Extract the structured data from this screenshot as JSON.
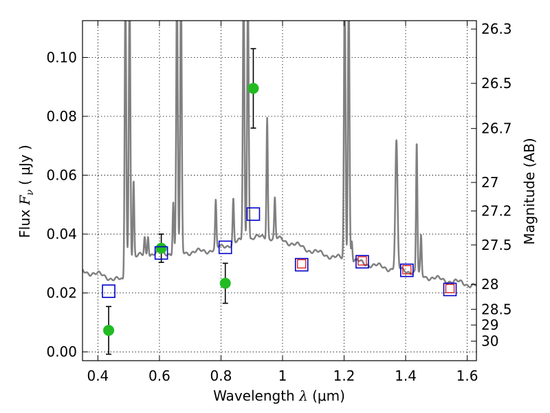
{
  "chart_data": {
    "type": "scatter",
    "title": "",
    "xlabel": {
      "prefix": "Wavelength ",
      "symbol": "λ",
      "unit": " (μm)"
    },
    "ylabel": {
      "prefix": "Flux ",
      "symbol": "F",
      "subscript": "ν",
      "unit": " ( μJy )"
    },
    "y2label": "Magnitude (AB)",
    "xlim": [
      0.35,
      1.63
    ],
    "ylim": [
      -0.003,
      0.1125
    ],
    "grid": true,
    "x_ticks": [
      "0.4",
      "0.6",
      "0.8",
      "1",
      "1.2",
      "1.4",
      "1.6"
    ],
    "x_tick_values": [
      0.4,
      0.6,
      0.8,
      1.0,
      1.2,
      1.4,
      1.6
    ],
    "y_ticks": [
      "0.00",
      "0.02",
      "0.04",
      "0.06",
      "0.08",
      "0.10"
    ],
    "y_tick_values": [
      0.0,
      0.02,
      0.04,
      0.06,
      0.08,
      0.1
    ],
    "y2_ticks": [
      "26.3",
      "26.5",
      "26.7",
      "27",
      "27.2",
      "27.5",
      "28",
      "28.5",
      "29",
      "30"
    ],
    "y2_tick_values": [
      26.3,
      26.5,
      26.7,
      27.0,
      27.2,
      27.5,
      28.0,
      28.5,
      29.0,
      30.0
    ],
    "colors": {
      "observed": "#22bb22",
      "model_blue": "#0000cc",
      "model_red": "#dd0000",
      "spectrum": "#808080",
      "errorbar": "#000000"
    },
    "series": [
      {
        "kind": "observed",
        "points": [
          {
            "x": 0.435,
            "y": 0.0073,
            "err": 0.0081
          },
          {
            "x": 0.606,
            "y": 0.0352,
            "err": 0.0048
          },
          {
            "x": 0.814,
            "y": 0.0233,
            "err": 0.0068
          },
          {
            "x": 0.905,
            "y": 0.0895,
            "err": 0.0135
          }
        ]
      },
      {
        "kind": "model_blue",
        "points": [
          {
            "x": 0.435,
            "y": 0.0206
          },
          {
            "x": 0.606,
            "y": 0.0336
          },
          {
            "x": 0.814,
            "y": 0.0355
          },
          {
            "x": 0.905,
            "y": 0.0468
          },
          {
            "x": 1.062,
            "y": 0.0296
          },
          {
            "x": 1.259,
            "y": 0.0306
          },
          {
            "x": 1.404,
            "y": 0.0277
          },
          {
            "x": 1.544,
            "y": 0.0212
          }
        ]
      },
      {
        "kind": "model_red",
        "points": [
          {
            "x": 1.062,
            "y": 0.0299
          },
          {
            "x": 1.259,
            "y": 0.0309
          },
          {
            "x": 1.404,
            "y": 0.0279
          },
          {
            "x": 1.544,
            "y": 0.0215
          }
        ]
      }
    ],
    "spectrum": {
      "continuum": [
        [
          0.35,
          0.0275
        ],
        [
          0.4,
          0.0263
        ],
        [
          0.45,
          0.0249
        ],
        [
          0.48,
          0.0241
        ],
        [
          0.49,
          0.0225
        ],
        [
          0.495,
          0.031
        ],
        [
          0.52,
          0.0321
        ],
        [
          0.55,
          0.033
        ],
        [
          0.6,
          0.0335
        ],
        [
          0.65,
          0.0336
        ],
        [
          0.7,
          0.0339
        ],
        [
          0.75,
          0.0342
        ],
        [
          0.8,
          0.0355
        ],
        [
          0.85,
          0.0372
        ],
        [
          0.9,
          0.0387
        ],
        [
          0.95,
          0.039
        ],
        [
          1.0,
          0.038
        ],
        [
          1.05,
          0.0361
        ],
        [
          1.1,
          0.0341
        ],
        [
          1.15,
          0.0327
        ],
        [
          1.2,
          0.0315
        ],
        [
          1.25,
          0.0305
        ],
        [
          1.3,
          0.0293
        ],
        [
          1.35,
          0.0283
        ],
        [
          1.4,
          0.0278
        ],
        [
          1.45,
          0.026
        ],
        [
          1.5,
          0.0248
        ],
        [
          1.55,
          0.024
        ],
        [
          1.63,
          0.0225
        ]
      ],
      "lines": [
        {
          "x": 0.4895,
          "peak": 0.125,
          "w": 0.0035
        },
        {
          "x": 0.503,
          "peak": 0.125,
          "w": 0.0035
        },
        {
          "x": 0.516,
          "peak": 0.058,
          "w": 0.003
        },
        {
          "x": 0.552,
          "peak": 0.039,
          "w": 0.003
        },
        {
          "x": 0.563,
          "peak": 0.04,
          "w": 0.003
        },
        {
          "x": 0.645,
          "peak": 0.051,
          "w": 0.003
        },
        {
          "x": 0.657,
          "peak": 0.125,
          "w": 0.0035
        },
        {
          "x": 0.67,
          "peak": 0.125,
          "w": 0.0035
        },
        {
          "x": 0.783,
          "peak": 0.051,
          "w": 0.003
        },
        {
          "x": 0.84,
          "peak": 0.052,
          "w": 0.003
        },
        {
          "x": 0.8735,
          "peak": 0.125,
          "w": 0.0035
        },
        {
          "x": 0.8875,
          "peak": 0.125,
          "w": 0.0035
        },
        {
          "x": 0.95,
          "peak": 0.08,
          "w": 0.003
        },
        {
          "x": 0.975,
          "peak": 0.052,
          "w": 0.003
        },
        {
          "x": 1.202,
          "peak": 0.125,
          "w": 0.0035
        },
        {
          "x": 1.215,
          "peak": 0.125,
          "w": 0.0035
        },
        {
          "x": 1.225,
          "peak": 0.038,
          "w": 0.003
        },
        {
          "x": 1.37,
          "peak": 0.071,
          "w": 0.005
        },
        {
          "x": 1.436,
          "peak": 0.071,
          "w": 0.003
        },
        {
          "x": 1.45,
          "peak": 0.039,
          "w": 0.003
        }
      ]
    }
  }
}
